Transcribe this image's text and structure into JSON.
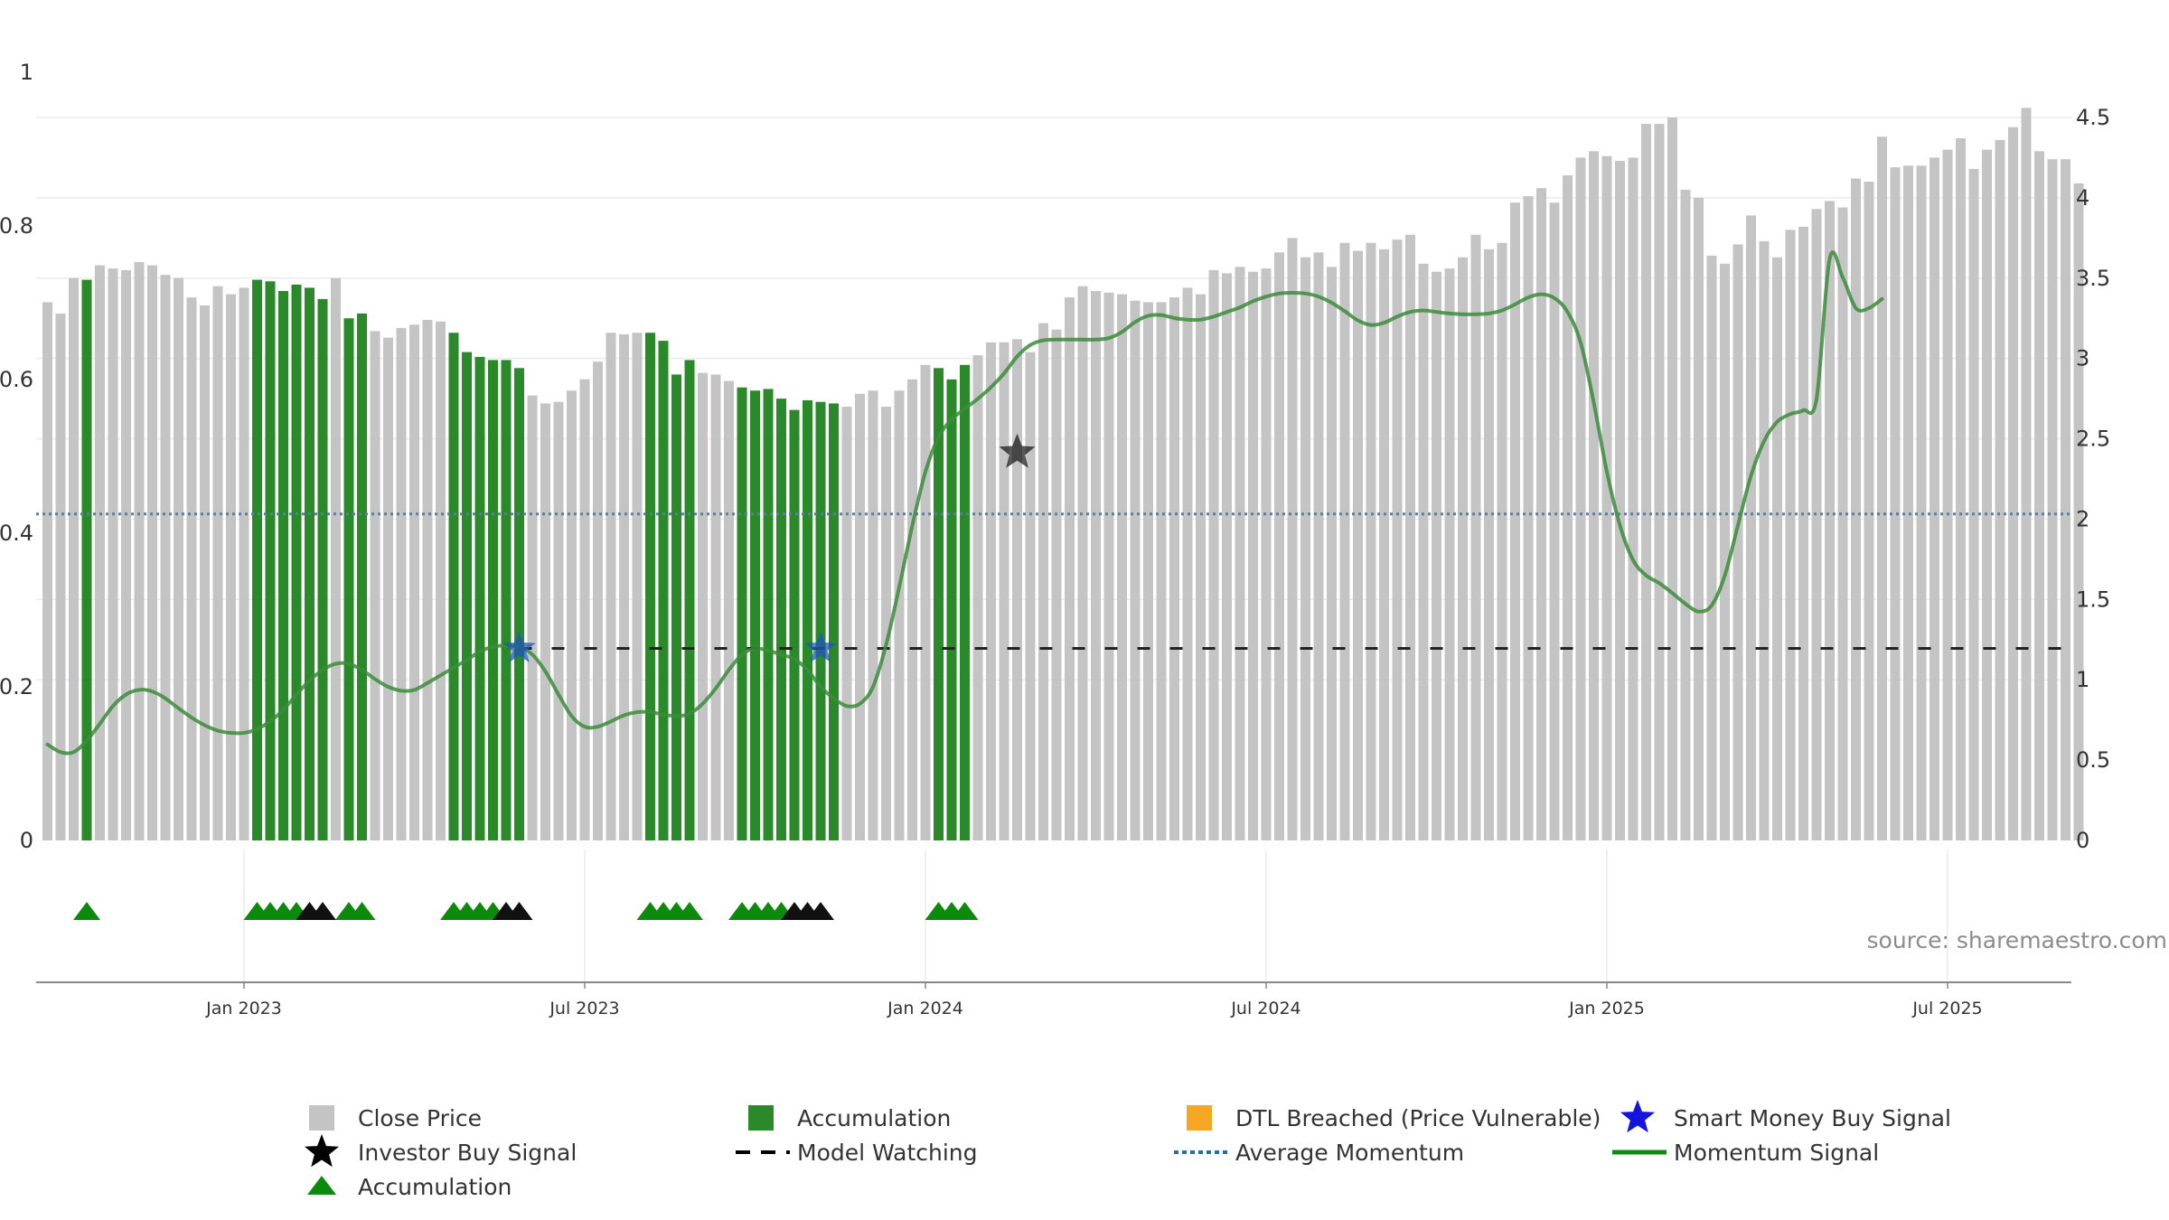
{
  "source": "source: sharemaestro.com",
  "colors": {
    "close_bar": "#c4c4c4",
    "accumulation_bar": "#2a8a2a",
    "momentum_line": "#3c8c3c",
    "average_momentum": "#5a7f9e",
    "model_watching": "#222222",
    "accumulation_marker": "#0c8a0c",
    "investor_buy": "#111111",
    "smart_money_buy": "#1f55b8",
    "dtl_breached": "#f5a623"
  },
  "chart_data": {
    "type": "bar",
    "x_axis": {
      "tick_labels": [
        "Jan 2023",
        "Jul 2023",
        "Jan 2024",
        "Jul 2024",
        "Jan 2025",
        "Jul 2025"
      ],
      "tick_week_index": [
        15,
        41,
        67,
        93,
        119,
        145
      ]
    },
    "left_axis": {
      "range": [
        0,
        1
      ],
      "tick_labels": [
        "0",
        "0.2",
        "0.4",
        "0.6",
        "0.8",
        "1"
      ]
    },
    "right_axis": {
      "range": [
        0,
        4.8
      ],
      "tick_labels": [
        "0",
        "0.5",
        "1",
        "1.5",
        "2",
        "2.5",
        "3",
        "3.5",
        "4",
        "4.5"
      ]
    },
    "close_price": [
      3.35,
      3.28,
      3.5,
      3.49,
      3.58,
      3.56,
      3.55,
      3.6,
      3.58,
      3.52,
      3.5,
      3.38,
      3.33,
      3.45,
      3.4,
      3.44,
      3.49,
      3.48,
      3.42,
      3.46,
      3.44,
      3.37,
      3.5,
      3.25,
      3.28,
      3.17,
      3.13,
      3.19,
      3.21,
      3.24,
      3.23,
      3.16,
      3.04,
      3.01,
      2.99,
      2.99,
      2.94,
      2.77,
      2.72,
      2.73,
      2.8,
      2.87,
      2.98,
      3.16,
      3.15,
      3.16,
      3.16,
      3.11,
      2.9,
      2.99,
      2.91,
      2.9,
      2.86,
      2.82,
      2.8,
      2.81,
      2.75,
      2.68,
      2.74,
      2.73,
      2.72,
      2.7,
      2.78,
      2.8,
      2.7,
      2.8,
      2.87,
      2.96,
      2.94,
      2.87,
      2.96,
      3.02,
      3.1,
      3.1,
      3.12,
      3.04,
      3.22,
      3.18,
      3.38,
      3.45,
      3.42,
      3.41,
      3.4,
      3.36,
      3.35,
      3.35,
      3.38,
      3.44,
      3.4,
      3.55,
      3.53,
      3.57,
      3.54,
      3.56,
      3.66,
      3.75,
      3.63,
      3.66,
      3.57,
      3.72,
      3.67,
      3.72,
      3.68,
      3.74,
      3.77,
      3.59,
      3.54,
      3.56,
      3.63,
      3.77,
      3.68,
      3.72,
      3.97,
      4.01,
      4.06,
      3.97,
      4.14,
      4.25,
      4.29,
      4.26,
      4.23,
      4.25,
      4.46,
      4.46,
      4.5,
      4.05,
      4.0,
      3.64,
      3.59,
      3.71,
      3.89,
      3.73,
      3.63,
      3.8,
      3.82,
      3.93,
      3.98,
      3.94,
      4.12,
      4.1,
      4.38,
      4.19,
      4.2,
      4.2,
      4.25,
      4.3,
      4.37,
      4.18,
      4.3,
      4.36,
      4.44,
      4.56,
      4.29,
      4.24,
      4.24,
      4.09
    ],
    "accumulation_weeks": [
      3,
      16,
      17,
      18,
      19,
      20,
      21,
      23,
      24,
      31,
      32,
      33,
      34,
      35,
      36,
      46,
      47,
      48,
      49,
      53,
      54,
      55,
      56,
      57,
      58,
      59,
      60,
      68,
      69,
      70
    ],
    "momentum_signal": [
      0.125,
      0.115,
      0.115,
      0.13,
      0.152,
      0.175,
      0.19,
      0.196,
      0.194,
      0.185,
      0.172,
      0.16,
      0.15,
      0.143,
      0.14,
      0.14,
      0.145,
      0.155,
      0.17,
      0.19,
      0.208,
      0.222,
      0.23,
      0.23,
      0.222,
      0.21,
      0.2,
      0.195,
      0.196,
      0.205,
      0.215,
      0.225,
      0.235,
      0.246,
      0.252,
      0.254,
      0.252,
      0.242,
      0.22,
      0.19,
      0.162,
      0.148,
      0.148,
      0.155,
      0.163,
      0.167,
      0.167,
      0.164,
      0.162,
      0.165,
      0.178,
      0.198,
      0.222,
      0.242,
      0.25,
      0.247,
      0.242,
      0.236,
      0.222,
      0.2,
      0.185,
      0.175,
      0.178,
      0.2,
      0.255,
      0.33,
      0.41,
      0.48,
      0.525,
      0.548,
      0.562,
      0.575,
      0.59,
      0.608,
      0.63,
      0.645,
      0.651,
      0.652,
      0.652,
      0.652,
      0.652,
      0.654,
      0.662,
      0.675,
      0.683,
      0.684,
      0.68,
      0.678,
      0.678,
      0.682,
      0.688,
      0.694,
      0.702,
      0.708,
      0.712,
      0.713,
      0.712,
      0.708,
      0.7,
      0.689,
      0.677,
      0.671,
      0.674,
      0.682,
      0.688,
      0.69,
      0.688,
      0.686,
      0.685,
      0.685,
      0.686,
      0.69,
      0.698,
      0.707,
      0.711,
      0.706,
      0.688,
      0.648,
      0.57,
      0.48,
      0.41,
      0.365,
      0.345,
      0.335,
      0.322,
      0.308,
      0.298,
      0.306,
      0.345,
      0.41,
      0.475,
      0.52,
      0.545,
      0.555,
      0.56,
      0.575,
      0.757,
      0.733,
      0.693,
      0.693,
      0.705
    ],
    "average_momentum": 0.425,
    "model_watching": {
      "level": 0.25,
      "from_week": 36,
      "to_week": 155
    },
    "smart_money_buy_signals": [
      {
        "week": 36,
        "value": 0.25
      },
      {
        "week": 59,
        "value": 0.25
      }
    ],
    "investor_buy_signals": [
      {
        "week": 74,
        "value": 0.505
      }
    ],
    "accumulation_markers": [
      3,
      16,
      17,
      18,
      19,
      23,
      24,
      31,
      32,
      33,
      34,
      46,
      47,
      48,
      49,
      53,
      54,
      55,
      56,
      68,
      69,
      70
    ],
    "investor_buy_markers": [
      20,
      21,
      35,
      36,
      57,
      58,
      59
    ],
    "legend": [
      {
        "label": "Close Price",
        "symbol": "gray-square"
      },
      {
        "label": "Accumulation",
        "symbol": "green-square"
      },
      {
        "label": "DTL Breached (Price Vulnerable)",
        "symbol": "orange-square"
      },
      {
        "label": "Smart Money Buy Signal",
        "symbol": "blue-star"
      },
      {
        "label": "Investor Buy Signal",
        "symbol": "black-star"
      },
      {
        "label": "Model Watching",
        "symbol": "black-dash"
      },
      {
        "label": "Average Momentum",
        "symbol": "blue-dotted"
      },
      {
        "label": "Momentum Signal",
        "symbol": "green-line"
      },
      {
        "label": "Accumulation",
        "symbol": "green-triangle"
      }
    ]
  }
}
